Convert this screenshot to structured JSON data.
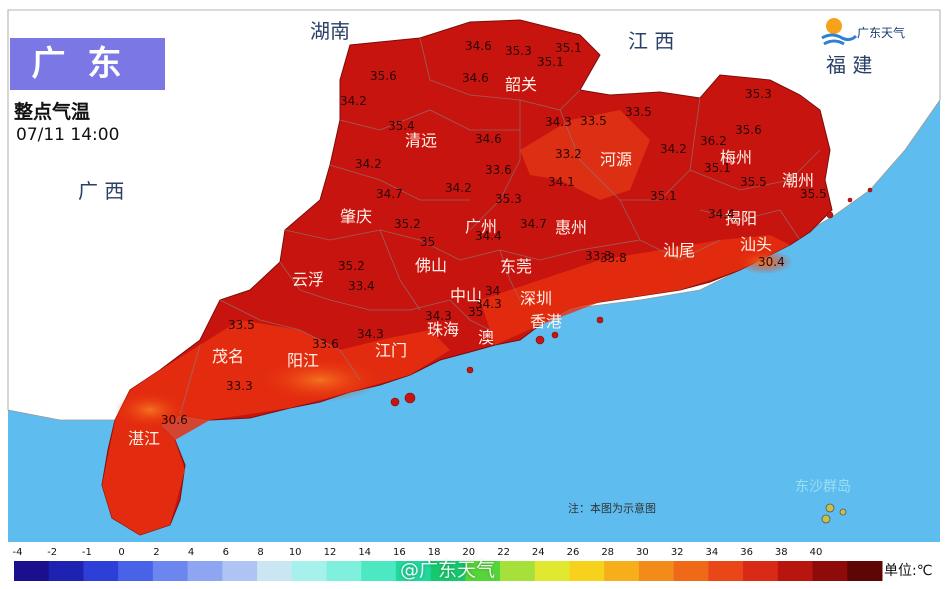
{
  "title": "广东",
  "subtitle": "整点气温",
  "datetime": "07/11  14:00",
  "logo_text": "广东天气",
  "note": "注：本图为示意图",
  "unit": "单位:℃",
  "watermark": "@广东天气",
  "colors": {
    "sea": "#5ebcee",
    "land_outside": "#ffffff",
    "hot": "#c8140f",
    "warm": "#e8300f",
    "warmer": "#f05a1a",
    "title_bg": "#7b78e6"
  },
  "region_labels": [
    {
      "id": "hunan",
      "text": "湖南"
    },
    {
      "id": "jiangxi",
      "text": "江 西"
    },
    {
      "id": "fujian",
      "text": "福 建"
    },
    {
      "id": "guangxi",
      "text": "广 西"
    }
  ],
  "city_labels": [
    {
      "id": "shaoguan",
      "text": "韶关"
    },
    {
      "id": "qingyuan",
      "text": "清远"
    },
    {
      "id": "heyuan",
      "text": "河源"
    },
    {
      "id": "meizhou",
      "text": "梅州"
    },
    {
      "id": "chaozhou",
      "text": "潮州"
    },
    {
      "id": "jieyang",
      "text": "揭阳"
    },
    {
      "id": "shantou",
      "text": "汕头"
    },
    {
      "id": "shanwei",
      "text": "汕尾"
    },
    {
      "id": "huizhou",
      "text": "惠州"
    },
    {
      "id": "guangzhou",
      "text": "广州"
    },
    {
      "id": "dongguan",
      "text": "东莞"
    },
    {
      "id": "shenzhen",
      "text": "深圳"
    },
    {
      "id": "xianggang",
      "text": "香港"
    },
    {
      "id": "zhaoqing",
      "text": "肇庆"
    },
    {
      "id": "foshan",
      "text": "佛山"
    },
    {
      "id": "zhongshan",
      "text": "中山"
    },
    {
      "id": "zhuhai",
      "text": "珠海"
    },
    {
      "id": "aomen",
      "text": "澳"
    },
    {
      "id": "yunfu",
      "text": "云浮"
    },
    {
      "id": "jiangmen",
      "text": "江门"
    },
    {
      "id": "yangjiang",
      "text": "阳江"
    },
    {
      "id": "maoming",
      "text": "茂名"
    },
    {
      "id": "zhanjiang",
      "text": "湛江"
    },
    {
      "id": "dongsha",
      "text": "东沙群岛"
    }
  ],
  "temperature_labels": [
    "34.6",
    "35.3",
    "35.1",
    "35.1",
    "35.6",
    "34.6",
    "34.2",
    "35.4",
    "34.6",
    "34.3",
    "33.5",
    "33.5",
    "35.3",
    "35.6",
    "34.2",
    "33.2",
    "34.1",
    "34.2",
    "36.2",
    "35.1",
    "34.7",
    "34.2",
    "33.6",
    "35.1",
    "35.5",
    "35.5",
    "35.3",
    "34.4",
    "35.2",
    "34.7",
    "34.4",
    "35",
    "33.3",
    "33.8",
    "30.4",
    "35.2",
    "33.4",
    "34.3",
    "34",
    "33.5",
    "33.6",
    "34.3",
    "33.3",
    "30.6",
    "34.3",
    "35"
  ],
  "legend": {
    "ticks": [
      "-4",
      "-2",
      "-1",
      "0",
      "2",
      "4",
      "6",
      "8",
      "10",
      "12",
      "14",
      "16",
      "18",
      "20",
      "22",
      "24",
      "26",
      "28",
      "30",
      "32",
      "34",
      "36",
      "38",
      "40"
    ],
    "colors": [
      "#1a0f8c",
      "#1d22b0",
      "#2d3fd6",
      "#4863e8",
      "#6b86ef",
      "#8ea6f2",
      "#b0c4f4",
      "#c9e6f2",
      "#a7f1ec",
      "#7ff0dd",
      "#4ce8c2",
      "#22d79c",
      "#18c86e",
      "#56d53a",
      "#a6e03a",
      "#e0e830",
      "#f7d21d",
      "#f6ae1b",
      "#f28b1a",
      "#ee6a18",
      "#e94718",
      "#d92a16",
      "#b8150f",
      "#8e0b0a",
      "#5e0505"
    ]
  }
}
